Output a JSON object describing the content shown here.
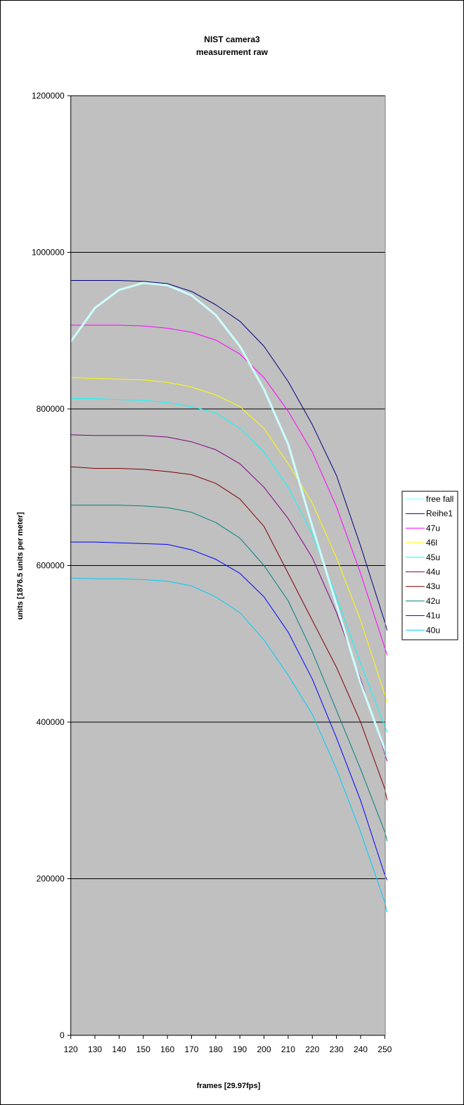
{
  "chart_data": {
    "type": "line",
    "title": [
      "NIST camera3",
      "measurement raw"
    ],
    "xlabel": "frames [29.97fps]",
    "ylabel": "units [1876.5 units per meter]",
    "xlim": [
      120,
      251
    ],
    "ylim": [
      0,
      1200000
    ],
    "xticks": [
      120,
      130,
      140,
      150,
      160,
      170,
      180,
      190,
      200,
      210,
      220,
      230,
      240,
      250
    ],
    "yticks": [
      0,
      200000,
      400000,
      600000,
      800000,
      1000000,
      1200000
    ],
    "grid": "horizontal major",
    "legend_position": "right",
    "plot_background": "#C0C0C0",
    "x": [
      120,
      130,
      140,
      150,
      160,
      170,
      180,
      190,
      200,
      210,
      220,
      230,
      240,
      250,
      251
    ],
    "series": [
      {
        "name": "free fall",
        "color": "#CCFFFF",
        "width": 3,
        "values": [
          886000,
          929000,
          952000,
          961000,
          958000,
          945000,
          920000,
          880000,
          825000,
          755000,
          650000,
          550000,
          450000,
          365000,
          355000
        ]
      },
      {
        "name": "Reihe1",
        "color": "#000080",
        "width": 1,
        "values": [
          964000,
          964000,
          964000,
          963000,
          960000,
          950000,
          933000,
          912000,
          880000,
          835000,
          780000,
          715000,
          625000,
          528000,
          517000
        ]
      },
      {
        "name": "47u",
        "color": "#FF00FF",
        "width": 1,
        "values": [
          907000,
          907000,
          907000,
          906000,
          903000,
          898000,
          888000,
          870000,
          840000,
          797000,
          745000,
          675000,
          590000,
          495000,
          486000
        ]
      },
      {
        "name": "46l",
        "color": "#FFFF00",
        "width": 1,
        "values": [
          840000,
          839000,
          838000,
          837000,
          834000,
          828000,
          818000,
          803000,
          775000,
          730000,
          680000,
          610000,
          530000,
          435000,
          425000
        ]
      },
      {
        "name": "45u",
        "color": "#00FFFF",
        "width": 1,
        "values": [
          813000,
          813000,
          812000,
          811000,
          808000,
          803000,
          795000,
          775000,
          745000,
          700000,
          640000,
          560000,
          475000,
          395000,
          387000
        ]
      },
      {
        "name": "44u",
        "color": "#800080",
        "width": 1,
        "values": [
          767000,
          766000,
          766000,
          766000,
          764000,
          758000,
          748000,
          730000,
          700000,
          660000,
          610000,
          540000,
          455000,
          360000,
          350000
        ]
      },
      {
        "name": "43u",
        "color": "#800000",
        "width": 1,
        "values": [
          726000,
          724000,
          724000,
          723000,
          720000,
          716000,
          705000,
          685000,
          650000,
          590000,
          530000,
          470000,
          400000,
          315000,
          300000
        ]
      },
      {
        "name": "42u",
        "color": "#008080",
        "width": 1,
        "values": [
          677000,
          677000,
          677000,
          676000,
          674000,
          668000,
          655000,
          635000,
          600000,
          555000,
          490000,
          415000,
          340000,
          260000,
          248000
        ]
      },
      {
        "name": "41u",
        "color": "#0000FF",
        "width": 1,
        "values": [
          630000,
          630000,
          629000,
          628000,
          627000,
          620000,
          608000,
          590000,
          560000,
          515000,
          455000,
          380000,
          300000,
          205000,
          198000
        ]
      },
      {
        "name": "40u",
        "color": "#00CCFF",
        "width": 1,
        "values": [
          584000,
          583000,
          583000,
          582000,
          580000,
          574000,
          560000,
          540000,
          505000,
          460000,
          410000,
          340000,
          260000,
          170000,
          157000
        ]
      }
    ]
  }
}
